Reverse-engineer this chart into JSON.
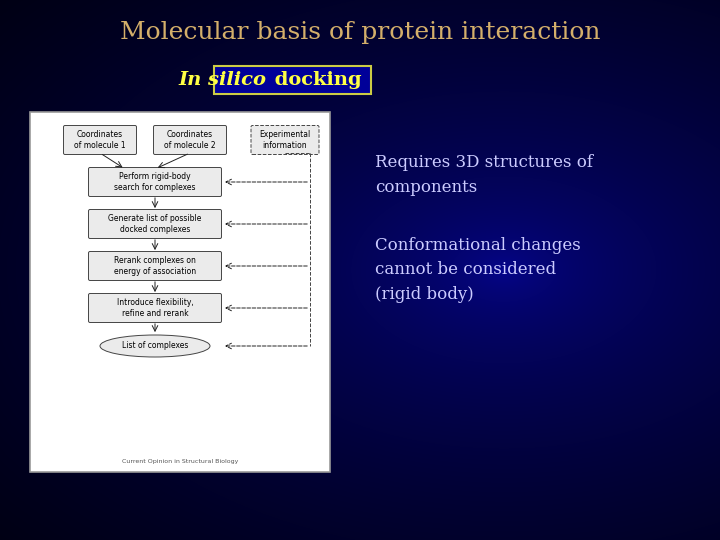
{
  "title": "Molecular basis of protein interaction",
  "title_color": "#D4AF6A",
  "title_fontsize": 18,
  "subtitle_italic": "In silico",
  "subtitle_normal": " docking",
  "subtitle_color": "#FFFF44",
  "subtitle_fontsize": 14,
  "subtitle_box_facecolor": "#000099",
  "subtitle_box_edgecolor": "#CCCC44",
  "text1": "Requires 3D structures of\ncomponents",
  "text2": "Conformational changes\ncannot be considered\n(rigid body)",
  "text_color": "#CCCCFF",
  "text_fontsize": 12,
  "diagram_caption": "Current Opinion in Structural Biology"
}
